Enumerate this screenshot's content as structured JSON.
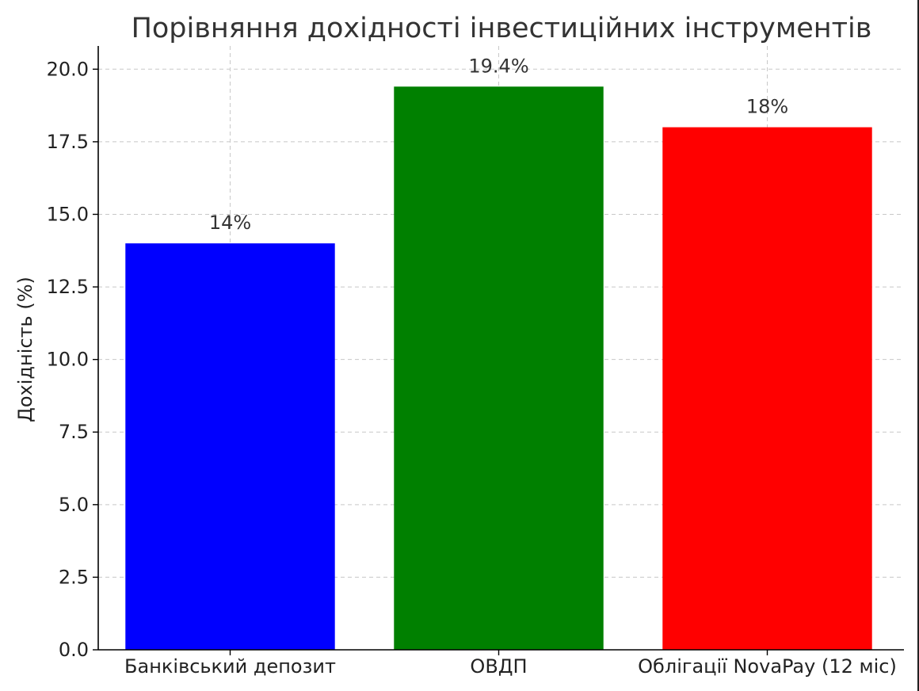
{
  "chart_data": {
    "type": "bar",
    "title": "Порівняння дохідності інвестиційних інструментів",
    "xlabel": "",
    "ylabel": "Дохідність (%)",
    "ylim": [
      0,
      20.8
    ],
    "y_ticks": [
      0.0,
      2.5,
      5.0,
      7.5,
      10.0,
      12.5,
      15.0,
      17.5,
      20.0
    ],
    "y_tick_labels": [
      "0.0",
      "2.5",
      "5.0",
      "7.5",
      "10.0",
      "12.5",
      "15.0",
      "17.5",
      "20.0"
    ],
    "grid": true,
    "categories": [
      "Банківський депозит",
      "ОВДП",
      "Облігації NovaPay (12 міс)"
    ],
    "values": [
      14,
      19.4,
      18
    ],
    "data_labels": [
      "14%",
      "19.4%",
      "18%"
    ],
    "colors": [
      "#0000ff",
      "#008000",
      "#ff0000"
    ]
  }
}
